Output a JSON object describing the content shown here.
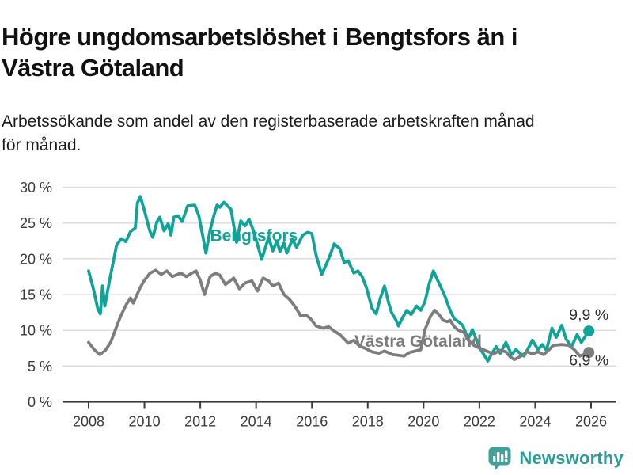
{
  "header": {
    "title": "Högre ungdomsarbetslöshet i Bengtsfors än i Västra Götaland",
    "title_lines": [
      "Högre ungdomsarbetslöshet i Bengtsfors än i",
      "Västra Götaland"
    ],
    "subtitle": "Arbetssökande som andel av den registerbaserade arbetskraften månad för månad.",
    "subtitle_lines": [
      "Arbetssökande som andel av den registerbaserade arbetskraften månad",
      "för månad."
    ]
  },
  "footer": {
    "brand": "Newsworthy",
    "brand_color": "#2e9b94",
    "icon": "bar-chart-speech-bubble-icon",
    "icon_color": "#41a199"
  },
  "chart_data": {
    "type": "line",
    "title": "Högre ungdomsarbetslöshet i Bengtsfors än i Västra Götaland",
    "xlabel": "",
    "ylabel": "",
    "x_unit": "year (monthly data)",
    "xlim": [
      2007.5,
      2026.9
    ],
    "ylim": [
      0,
      30
    ],
    "grid": "horizontal",
    "legend_position": "inline-labels",
    "y_ticks": [
      0,
      5,
      10,
      15,
      20,
      25,
      30
    ],
    "y_tick_labels": [
      "0 %",
      "5 %",
      "10 %",
      "15 %",
      "20 %",
      "25 %",
      "30 %"
    ],
    "x_ticks": [
      2008,
      2010,
      2012,
      2014,
      2016,
      2018,
      2020,
      2022,
      2024,
      2026
    ],
    "x_tick_labels": [
      "2008",
      "2010",
      "2012",
      "2014",
      "2016",
      "2018",
      "2020",
      "2022",
      "2024",
      "2026"
    ],
    "colors": {
      "grid": "#dcdcdc",
      "axis": "#3c3c3c",
      "tick_text": "#3c3c3c",
      "end_label_text": "#333333"
    },
    "series": [
      {
        "name": "Bengtsfors",
        "color": "#12a398",
        "end_label": "9,9 %",
        "end_value": 9.9,
        "end_dot": true,
        "label_at": [
          2012.35,
          22.5
        ],
        "points": [
          [
            2008.0,
            18.3
          ],
          [
            2008.17,
            15.8
          ],
          [
            2008.33,
            13.0
          ],
          [
            2008.42,
            12.3
          ],
          [
            2008.5,
            16.2
          ],
          [
            2008.58,
            13.4
          ],
          [
            2008.75,
            17.0
          ],
          [
            2009.0,
            21.9
          ],
          [
            2009.17,
            22.8
          ],
          [
            2009.33,
            22.4
          ],
          [
            2009.5,
            23.8
          ],
          [
            2009.67,
            24.3
          ],
          [
            2009.75,
            27.8
          ],
          [
            2009.85,
            28.7
          ],
          [
            2010.0,
            26.7
          ],
          [
            2010.1,
            25.2
          ],
          [
            2010.2,
            23.8
          ],
          [
            2010.3,
            23.0
          ],
          [
            2010.45,
            25.2
          ],
          [
            2010.55,
            25.8
          ],
          [
            2010.7,
            23.9
          ],
          [
            2010.85,
            24.9
          ],
          [
            2010.95,
            23.3
          ],
          [
            2011.05,
            25.8
          ],
          [
            2011.2,
            26.0
          ],
          [
            2011.35,
            25.2
          ],
          [
            2011.55,
            27.4
          ],
          [
            2011.8,
            27.5
          ],
          [
            2011.95,
            26.0
          ],
          [
            2012.1,
            23.0
          ],
          [
            2012.2,
            20.8
          ],
          [
            2012.35,
            24.0
          ],
          [
            2012.5,
            26.2
          ],
          [
            2012.6,
            27.5
          ],
          [
            2012.7,
            27.2
          ],
          [
            2012.85,
            27.9
          ],
          [
            2013.0,
            27.3
          ],
          [
            2013.1,
            26.9
          ],
          [
            2013.3,
            22.3
          ],
          [
            2013.45,
            25.3
          ],
          [
            2013.6,
            24.6
          ],
          [
            2013.75,
            25.5
          ],
          [
            2013.9,
            24.0
          ],
          [
            2014.05,
            22.0
          ],
          [
            2014.2,
            19.9
          ],
          [
            2014.45,
            23.0
          ],
          [
            2014.6,
            21.1
          ],
          [
            2014.75,
            22.5
          ],
          [
            2014.85,
            21.0
          ],
          [
            2015.0,
            22.2
          ],
          [
            2015.1,
            20.8
          ],
          [
            2015.3,
            22.7
          ],
          [
            2015.45,
            21.6
          ],
          [
            2015.67,
            23.3
          ],
          [
            2015.85,
            23.7
          ],
          [
            2016.0,
            23.5
          ],
          [
            2016.15,
            20.5
          ],
          [
            2016.35,
            17.8
          ],
          [
            2016.6,
            20.0
          ],
          [
            2016.8,
            22.1
          ],
          [
            2017.0,
            21.4
          ],
          [
            2017.15,
            19.5
          ],
          [
            2017.3,
            19.7
          ],
          [
            2017.5,
            18.0
          ],
          [
            2017.65,
            18.3
          ],
          [
            2017.8,
            17.5
          ],
          [
            2017.95,
            16.0
          ],
          [
            2018.15,
            13.1
          ],
          [
            2018.3,
            12.3
          ],
          [
            2018.45,
            14.5
          ],
          [
            2018.6,
            16.2
          ],
          [
            2018.75,
            13.8
          ],
          [
            2018.85,
            12.5
          ],
          [
            2019.0,
            11.5
          ],
          [
            2019.1,
            10.6
          ],
          [
            2019.25,
            11.8
          ],
          [
            2019.4,
            12.8
          ],
          [
            2019.55,
            12.2
          ],
          [
            2019.75,
            13.4
          ],
          [
            2019.9,
            12.8
          ],
          [
            2020.05,
            14.0
          ],
          [
            2020.2,
            16.5
          ],
          [
            2020.35,
            18.3
          ],
          [
            2020.5,
            17.0
          ],
          [
            2020.6,
            16.2
          ],
          [
            2020.75,
            14.9
          ],
          [
            2020.95,
            12.8
          ],
          [
            2021.1,
            11.6
          ],
          [
            2021.25,
            11.2
          ],
          [
            2021.4,
            10.7
          ],
          [
            2021.6,
            8.8
          ],
          [
            2021.75,
            10.1
          ],
          [
            2021.9,
            8.5
          ],
          [
            2022.05,
            7.3
          ],
          [
            2022.3,
            5.7
          ],
          [
            2022.45,
            6.8
          ],
          [
            2022.6,
            7.7
          ],
          [
            2022.75,
            6.8
          ],
          [
            2022.95,
            8.3
          ],
          [
            2023.15,
            6.6
          ],
          [
            2023.3,
            7.3
          ],
          [
            2023.45,
            6.8
          ],
          [
            2023.6,
            6.4
          ],
          [
            2023.75,
            7.5
          ],
          [
            2023.9,
            8.6
          ],
          [
            2024.1,
            7.3
          ],
          [
            2024.25,
            8.0
          ],
          [
            2024.4,
            7.2
          ],
          [
            2024.6,
            10.3
          ],
          [
            2024.75,
            9.0
          ],
          [
            2024.95,
            10.7
          ],
          [
            2025.1,
            8.8
          ],
          [
            2025.3,
            7.7
          ],
          [
            2025.5,
            9.4
          ],
          [
            2025.65,
            8.3
          ],
          [
            2025.92,
            9.9
          ]
        ]
      },
      {
        "name": "Västra Götaland",
        "color": "#7d7d7d",
        "end_label": "6,9 %",
        "end_value": 6.9,
        "end_dot": true,
        "label_at": [
          2017.52,
          7.7
        ],
        "points": [
          [
            2008.0,
            8.3
          ],
          [
            2008.2,
            7.3
          ],
          [
            2008.4,
            6.6
          ],
          [
            2008.6,
            7.2
          ],
          [
            2008.8,
            8.4
          ],
          [
            2009.0,
            10.5
          ],
          [
            2009.15,
            12.0
          ],
          [
            2009.35,
            13.6
          ],
          [
            2009.5,
            14.5
          ],
          [
            2009.6,
            13.8
          ],
          [
            2009.85,
            16.0
          ],
          [
            2010.0,
            17.0
          ],
          [
            2010.2,
            18.0
          ],
          [
            2010.4,
            18.4
          ],
          [
            2010.6,
            17.8
          ],
          [
            2010.8,
            18.3
          ],
          [
            2011.0,
            17.5
          ],
          [
            2011.3,
            18.0
          ],
          [
            2011.5,
            17.5
          ],
          [
            2011.7,
            18.0
          ],
          [
            2011.85,
            18.3
          ],
          [
            2012.0,
            17.0
          ],
          [
            2012.15,
            15.0
          ],
          [
            2012.35,
            17.5
          ],
          [
            2012.55,
            18.0
          ],
          [
            2012.7,
            17.7
          ],
          [
            2012.9,
            16.4
          ],
          [
            2013.1,
            17.0
          ],
          [
            2013.2,
            17.3
          ],
          [
            2013.4,
            15.8
          ],
          [
            2013.6,
            16.6
          ],
          [
            2013.85,
            16.9
          ],
          [
            2014.05,
            15.5
          ],
          [
            2014.25,
            17.3
          ],
          [
            2014.45,
            16.9
          ],
          [
            2014.6,
            16.2
          ],
          [
            2014.8,
            16.6
          ],
          [
            2015.0,
            15.0
          ],
          [
            2015.2,
            14.3
          ],
          [
            2015.4,
            13.3
          ],
          [
            2015.6,
            12.0
          ],
          [
            2015.8,
            12.1
          ],
          [
            2015.95,
            11.6
          ],
          [
            2016.15,
            10.6
          ],
          [
            2016.4,
            10.3
          ],
          [
            2016.6,
            10.5
          ],
          [
            2016.8,
            9.9
          ],
          [
            2017.0,
            9.4
          ],
          [
            2017.3,
            8.2
          ],
          [
            2017.5,
            8.6
          ],
          [
            2017.7,
            7.8
          ],
          [
            2017.9,
            7.5
          ],
          [
            2018.15,
            7.0
          ],
          [
            2018.4,
            6.8
          ],
          [
            2018.6,
            7.1
          ],
          [
            2018.9,
            6.6
          ],
          [
            2019.1,
            6.5
          ],
          [
            2019.3,
            6.4
          ],
          [
            2019.5,
            6.9
          ],
          [
            2019.7,
            7.1
          ],
          [
            2019.9,
            7.3
          ],
          [
            2020.05,
            10.1
          ],
          [
            2020.25,
            12.0
          ],
          [
            2020.4,
            12.8
          ],
          [
            2020.55,
            12.2
          ],
          [
            2020.7,
            11.4
          ],
          [
            2020.85,
            11.2
          ],
          [
            2020.95,
            11.4
          ],
          [
            2021.1,
            10.5
          ],
          [
            2021.25,
            10.0
          ],
          [
            2021.45,
            9.7
          ],
          [
            2021.6,
            8.6
          ],
          [
            2021.8,
            7.9
          ],
          [
            2022.0,
            7.5
          ],
          [
            2022.2,
            7.2
          ],
          [
            2022.5,
            6.7
          ],
          [
            2022.75,
            7.2
          ],
          [
            2022.95,
            7.0
          ],
          [
            2023.1,
            6.3
          ],
          [
            2023.25,
            5.9
          ],
          [
            2023.5,
            6.4
          ],
          [
            2023.7,
            7.0
          ],
          [
            2023.9,
            6.7
          ],
          [
            2024.1,
            7.0
          ],
          [
            2024.3,
            6.6
          ],
          [
            2024.5,
            7.3
          ],
          [
            2024.65,
            7.9
          ],
          [
            2024.95,
            8.0
          ],
          [
            2025.2,
            7.9
          ],
          [
            2025.4,
            7.3
          ],
          [
            2025.6,
            6.4
          ],
          [
            2025.92,
            6.9
          ]
        ]
      }
    ]
  }
}
